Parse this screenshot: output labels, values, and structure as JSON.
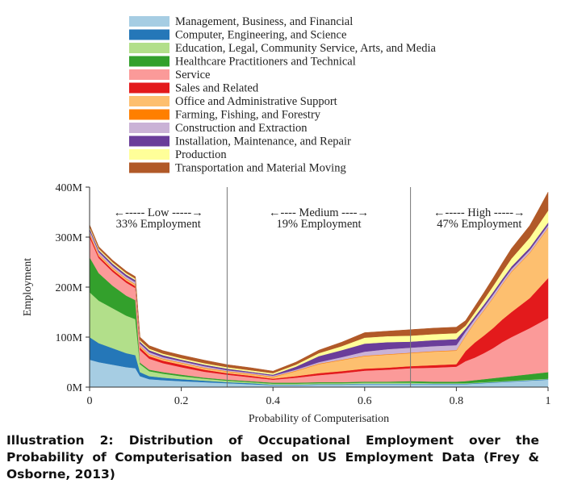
{
  "chart_data": {
    "type": "area",
    "stacked": true,
    "title": "",
    "xlabel": "Probability of Computerisation",
    "ylabel": "Employment",
    "xlim": [
      0,
      1
    ],
    "ylim": [
      0,
      400
    ],
    "x_ticks": [
      {
        "value": 0,
        "label": "0"
      },
      {
        "value": 0.2,
        "label": "0.2"
      },
      {
        "value": 0.4,
        "label": "0.4"
      },
      {
        "value": 0.6,
        "label": "0.6"
      },
      {
        "value": 0.8,
        "label": "0.8"
      },
      {
        "value": 1,
        "label": "1"
      }
    ],
    "y_ticks": [
      {
        "value": 0,
        "label": "0M"
      },
      {
        "value": 100,
        "label": "100M"
      },
      {
        "value": 200,
        "label": "200M"
      },
      {
        "value": 300,
        "label": "300M"
      },
      {
        "value": 400,
        "label": "400M"
      }
    ],
    "grid": false,
    "legend_position": "top",
    "region_boundaries": [
      0.3,
      0.7
    ],
    "regions": [
      {
        "arrow_label": "←----- Low -----→",
        "share_label": "33% Employment"
      },
      {
        "arrow_label": "←---- Medium ----→",
        "share_label": "19% Employment"
      },
      {
        "arrow_label": "←----- High -----→",
        "share_label": "47% Employment"
      }
    ],
    "x": [
      0,
      0.02,
      0.05,
      0.08,
      0.1,
      0.11,
      0.13,
      0.16,
      0.2,
      0.25,
      0.3,
      0.35,
      0.4,
      0.45,
      0.5,
      0.55,
      0.6,
      0.65,
      0.7,
      0.75,
      0.8,
      0.82,
      0.84,
      0.86,
      0.88,
      0.9,
      0.92,
      0.94,
      0.96,
      0.98,
      1
    ],
    "series": [
      {
        "name": "Management, Business, and Financial",
        "color": "#a6cde3",
        "values": [
          55,
          50,
          45,
          40,
          38,
          22,
          16,
          14,
          12,
          10,
          8,
          6,
          4,
          4,
          5,
          5,
          6,
          6,
          6,
          6,
          6,
          6,
          7,
          8,
          9,
          10,
          11,
          12,
          13,
          14,
          15
        ]
      },
      {
        "name": "Computer, Engineering, and Science",
        "color": "#2577b8",
        "values": [
          45,
          38,
          33,
          28,
          26,
          8,
          6,
          5,
          4,
          3,
          2,
          2,
          1,
          1,
          1,
          1,
          1,
          1,
          1,
          1,
          1,
          1,
          1,
          1,
          1,
          1,
          1,
          1,
          1,
          1,
          1
        ]
      },
      {
        "name": "Education, Legal, Community Service, Arts, and Media",
        "color": "#b2df8a",
        "values": [
          90,
          85,
          80,
          75,
          72,
          16,
          10,
          8,
          6,
          4,
          3,
          2,
          2,
          2,
          2,
          2,
          2,
          2,
          2,
          1,
          1,
          1,
          1,
          1,
          1,
          1,
          1,
          1,
          1,
          1,
          1
        ]
      },
      {
        "name": "Healthcare Practitioners and Technical",
        "color": "#33a02c",
        "values": [
          70,
          55,
          45,
          40,
          38,
          3,
          3,
          3,
          3,
          2,
          2,
          2,
          2,
          2,
          2,
          2,
          2,
          2,
          3,
          3,
          3,
          4,
          5,
          6,
          7,
          8,
          9,
          10,
          11,
          12,
          13
        ]
      },
      {
        "name": "Service",
        "color": "#fb9a99",
        "values": [
          40,
          30,
          28,
          26,
          24,
          25,
          22,
          18,
          15,
          12,
          10,
          8,
          6,
          10,
          14,
          18,
          22,
          24,
          26,
          28,
          30,
          40,
          45,
          52,
          60,
          70,
          78,
          85,
          92,
          100,
          108
        ]
      },
      {
        "name": "Sales and Related",
        "color": "#e31a1c",
        "values": [
          5,
          4,
          4,
          4,
          4,
          5,
          5,
          5,
          5,
          4,
          3,
          3,
          2,
          3,
          4,
          4,
          4,
          4,
          4,
          5,
          5,
          20,
          30,
          35,
          40,
          45,
          50,
          55,
          60,
          70,
          80
        ]
      },
      {
        "name": "Office and Administrative Support",
        "color": "#fdbf6f",
        "values": [
          3,
          3,
          3,
          3,
          3,
          3,
          3,
          3,
          3,
          3,
          3,
          3,
          3,
          10,
          18,
          22,
          25,
          26,
          26,
          27,
          27,
          30,
          40,
          50,
          60,
          70,
          80,
          85,
          90,
          95,
          100
        ]
      },
      {
        "name": "Farming, Fishing, and Forestry",
        "color": "#ff7f00",
        "values": [
          1,
          1,
          1,
          1,
          1,
          1,
          1,
          1,
          1,
          1,
          1,
          1,
          1,
          1,
          1,
          1,
          1,
          1,
          1,
          1,
          1,
          1,
          1,
          1,
          1,
          1,
          1,
          1,
          1,
          1,
          1
        ]
      },
      {
        "name": "Construction and Extraction",
        "color": "#cab2d6",
        "values": [
          5,
          4,
          4,
          4,
          4,
          4,
          4,
          3,
          3,
          3,
          2,
          2,
          2,
          2,
          3,
          5,
          8,
          10,
          10,
          10,
          10,
          8,
          6,
          6,
          6,
          5,
          5,
          5,
          5,
          5,
          5
        ]
      },
      {
        "name": "Installation, Maintenance, and Repair",
        "color": "#6a3d9a",
        "values": [
          4,
          4,
          4,
          4,
          4,
          4,
          4,
          4,
          3,
          3,
          3,
          2,
          2,
          6,
          12,
          14,
          16,
          14,
          12,
          12,
          12,
          6,
          5,
          5,
          5,
          5,
          5,
          5,
          5,
          5,
          5
        ]
      },
      {
        "name": "Production",
        "color": "#ffff99",
        "values": [
          3,
          3,
          3,
          3,
          3,
          3,
          3,
          3,
          3,
          3,
          3,
          3,
          3,
          4,
          6,
          8,
          12,
          12,
          12,
          12,
          12,
          6,
          8,
          10,
          12,
          14,
          16,
          18,
          20,
          22,
          24
        ]
      },
      {
        "name": "Transportation and Material Moving",
        "color": "#b15928",
        "values": [
          4,
          4,
          4,
          4,
          4,
          6,
          6,
          6,
          6,
          6,
          5,
          5,
          4,
          5,
          6,
          8,
          10,
          10,
          12,
          12,
          12,
          10,
          12,
          14,
          16,
          18,
          20,
          22,
          24,
          30,
          37
        ]
      }
    ]
  },
  "caption": "Illustration 2: Distribution of Occupational Employment over the Probability of Computerisation based on US Employment Data (Frey & Osborne, 2013)"
}
